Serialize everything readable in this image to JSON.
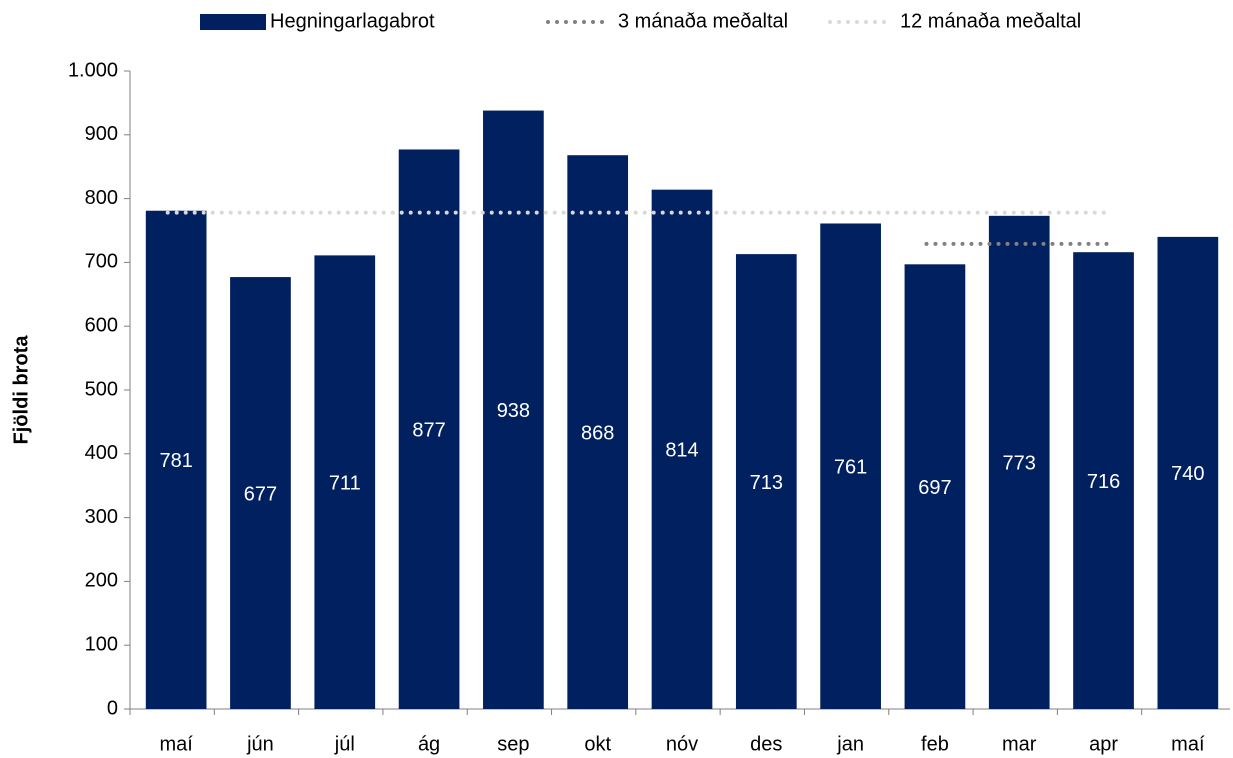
{
  "chart_data": {
    "type": "bar",
    "y_label": "Fjöldi brota",
    "categories": [
      "maí",
      "jún",
      "júl",
      "ág",
      "sep",
      "okt",
      "nóv",
      "des",
      "jan",
      "feb",
      "mar",
      "apr",
      "maí"
    ],
    "series": [
      {
        "name": "Hegningarlagabrot",
        "color": "#002060",
        "type": "bar",
        "values": [
          781,
          677,
          711,
          877,
          938,
          868,
          814,
          713,
          761,
          697,
          773,
          716,
          740
        ]
      },
      {
        "name": "3 mánaða meðaltal",
        "color": "#808080",
        "type": "line",
        "values": [
          null,
          null,
          null,
          null,
          null,
          null,
          null,
          null,
          null,
          729,
          729,
          729,
          null
        ]
      },
      {
        "name": "12 mánaða meðaltal",
        "color": "#d9d9d9",
        "type": "line",
        "values": [
          778,
          778,
          778,
          778,
          778,
          778,
          778,
          778,
          778,
          778,
          778,
          778,
          null
        ]
      }
    ],
    "ylim": [
      0,
      1000
    ],
    "yticks": [
      0,
      100,
      200,
      300,
      400,
      500,
      600,
      700,
      800,
      900,
      {
        "value": 1000,
        "label": "1.000"
      }
    ],
    "grid": false,
    "legend": "top"
  }
}
